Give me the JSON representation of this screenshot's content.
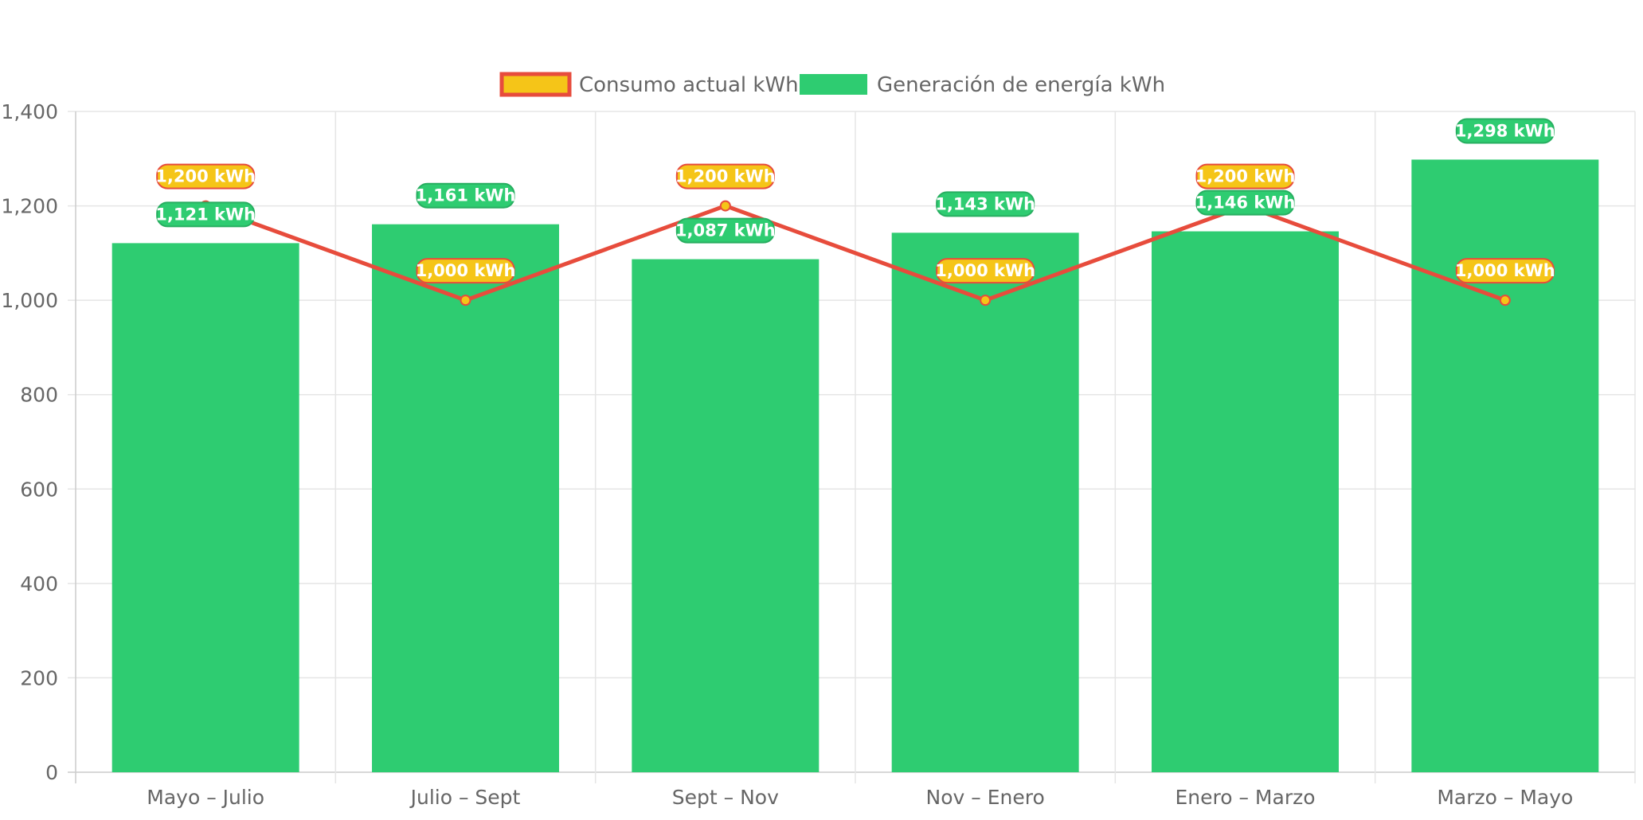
{
  "chart_data": {
    "type": "bar",
    "categories": [
      "Mayo – Julio",
      "Julio – Sept",
      "Sept – Nov",
      "Nov – Enero",
      "Enero – Marzo",
      "Marzo – Mayo"
    ],
    "series": [
      {
        "name": "Consumo actual kWh",
        "type": "line",
        "values": [
          1200,
          1000,
          1200,
          1000,
          1200,
          1000
        ],
        "labels": [
          "1,200 kWh",
          "1,000 kWh",
          "1,200 kWh",
          "1,000 kWh",
          "1,200 kWh",
          "1,000 kWh"
        ],
        "color": "#f5c518",
        "border_color": "#e74c3c"
      },
      {
        "name": "Generación de energía kWh",
        "type": "bar",
        "values": [
          1121,
          1161,
          1087,
          1143,
          1146,
          1298
        ],
        "labels": [
          "1,121 kWh",
          "1,161 kWh",
          "1,087 kWh",
          "1,143 kWh",
          "1,146 kWh",
          "1,298 kWh"
        ],
        "color": "#2ecc71",
        "border_color": "#27ae60"
      }
    ],
    "y_ticks": [
      "0",
      "200",
      "400",
      "600",
      "800",
      "1,000",
      "1,200",
      "1,400"
    ],
    "ylim": [
      0,
      1400
    ],
    "grid": true,
    "legend_position": "top"
  }
}
